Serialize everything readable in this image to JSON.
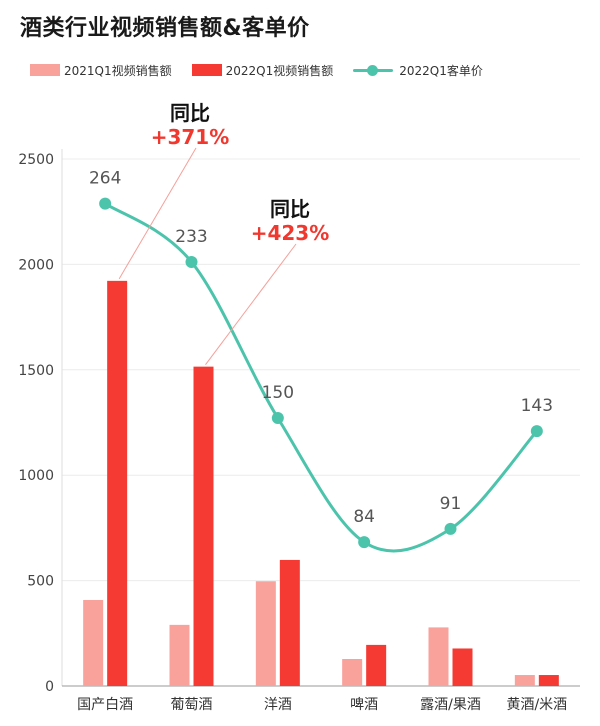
{
  "chart_data": {
    "type": "bar",
    "title": "酒类行业视频销售额&客单价",
    "categories": [
      "国产白酒",
      "葡萄酒",
      "洋酒",
      "啤酒",
      "露酒/果酒",
      "黄酒/米酒"
    ],
    "series": [
      {
        "name": "2021Q1视频销售额",
        "type": "bar",
        "color": "#f9a19b",
        "values": [
          408,
          290,
          497,
          128,
          278,
          52
        ]
      },
      {
        "name": "2022Q1视频销售额",
        "type": "bar",
        "color": "#f43a32",
        "values": [
          1922,
          1515,
          598,
          195,
          178,
          52
        ]
      },
      {
        "name": "2022Q1客单价",
        "type": "line",
        "color": "#4cc4ac",
        "smooth": true,
        "values": [
          264,
          233,
          150,
          84,
          91,
          143
        ],
        "labels": [
          "264",
          "233",
          "150",
          "84",
          "91",
          "143"
        ]
      }
    ],
    "yaxis": {
      "ticks": [
        "0",
        "500",
        "1000",
        "1500",
        "2000",
        "2500"
      ],
      "min": 0,
      "max": 2500
    },
    "grid": true,
    "legend": "top",
    "annotations": [
      {
        "title": "同比",
        "value": "+371%",
        "category_index": 0,
        "series": 1
      },
      {
        "title": "同比",
        "value": "+423%",
        "category_index": 1,
        "series": 1
      }
    ],
    "colors": {
      "grid": "#ececec",
      "axis": "#999999",
      "text": "#444444",
      "accent": "#f0382f"
    }
  }
}
